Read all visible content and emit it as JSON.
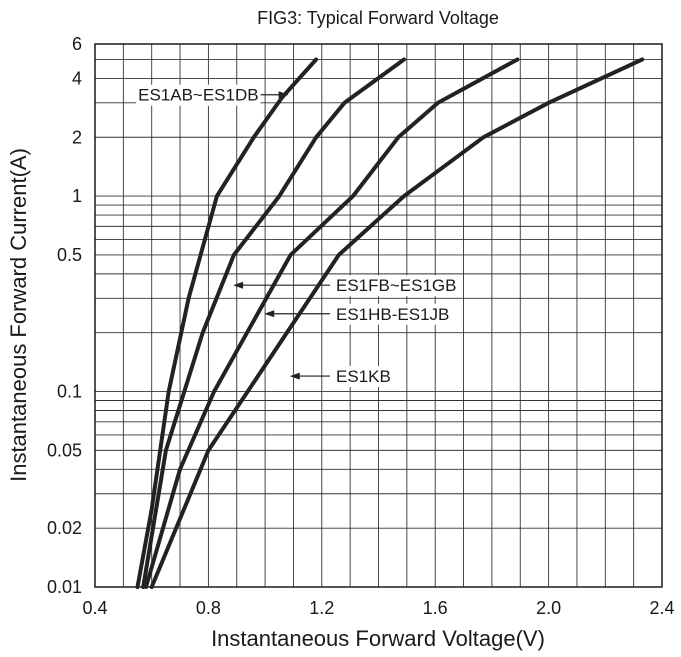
{
  "chart_data": {
    "type": "line",
    "title": "FIG3: Typical Forward Voltage",
    "xlabel": "Instantaneous Forward Voltage(V)",
    "ylabel": "Instantaneous Forward Current(A)",
    "x_scale": "linear",
    "y_scale": "log",
    "xlim": [
      0.4,
      2.4
    ],
    "ylim": [
      0.01,
      6
    ],
    "x_ticks": [
      0.4,
      0.8,
      1.2,
      1.6,
      2.0,
      2.4
    ],
    "x_tick_labels": [
      "0.4",
      "0.8",
      "1.2",
      "1.6",
      "2.0",
      "2.4"
    ],
    "y_ticks": [
      0.01,
      0.02,
      0.05,
      0.1,
      0.5,
      1,
      2,
      4,
      6
    ],
    "y_tick_labels": [
      "0.01",
      "0.02",
      "0.05",
      "0.1",
      "0.5",
      "1",
      "2",
      "4",
      "6"
    ],
    "grid": true,
    "line_color": "#222222",
    "series": [
      {
        "name": "ES1AB~ES1DB",
        "label_at": [
          1.09,
          3.3
        ],
        "points": [
          [
            0.55,
            0.01
          ],
          [
            0.6,
            0.025
          ],
          [
            0.66,
            0.1
          ],
          [
            0.73,
            0.3
          ],
          [
            0.83,
            1.0
          ],
          [
            0.96,
            2.0
          ],
          [
            1.06,
            3.2
          ],
          [
            1.18,
            5.0
          ]
        ]
      },
      {
        "name": "ES1FB~ES1GB",
        "label_at": [
          0.88,
          0.35
        ],
        "points": [
          [
            0.57,
            0.01
          ],
          [
            0.65,
            0.05
          ],
          [
            0.78,
            0.2
          ],
          [
            0.89,
            0.5
          ],
          [
            1.05,
            1.0
          ],
          [
            1.18,
            2.0
          ],
          [
            1.28,
            3.0
          ],
          [
            1.49,
            5.0
          ]
        ]
      },
      {
        "name": "ES1HB-ES1JB",
        "label_at": [
          0.99,
          0.25
        ],
        "points": [
          [
            0.58,
            0.01
          ],
          [
            0.7,
            0.04
          ],
          [
            0.82,
            0.1
          ],
          [
            1.09,
            0.5
          ],
          [
            1.31,
            1.0
          ],
          [
            1.47,
            2.0
          ],
          [
            1.61,
            3.0
          ],
          [
            1.89,
            5.0
          ]
        ]
      },
      {
        "name": "ES1KB",
        "label_at": [
          1.08,
          0.12
        ],
        "points": [
          [
            0.6,
            0.01
          ],
          [
            0.8,
            0.05
          ],
          [
            1.26,
            0.5
          ],
          [
            1.49,
            1.0
          ],
          [
            1.77,
            2.0
          ],
          [
            2.0,
            3.0
          ],
          [
            2.33,
            5.0
          ]
        ]
      }
    ]
  }
}
